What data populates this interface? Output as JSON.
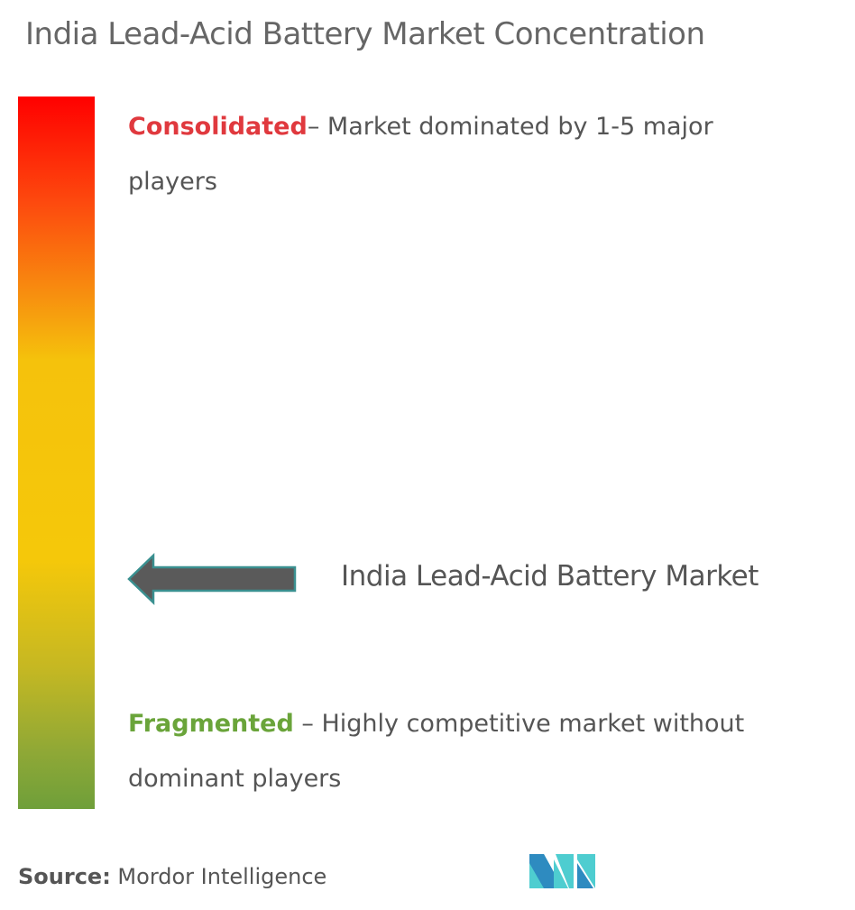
{
  "title": "India Lead-Acid Battery Market Concentration",
  "scale": {
    "top_color": "#ff0000",
    "middle_color": "#f5c80a",
    "bottom_color": "#6f9f3a"
  },
  "consolidated": {
    "label": "Consolidated",
    "text": "– Market dominated by 1-5 major players",
    "color": "#e0393e"
  },
  "fragmented": {
    "label": "Fragmented",
    "text": " – Highly competitive market without dominant players",
    "color": "#6aa43a"
  },
  "marker": {
    "label": "India Lead-Acid Battery Market",
    "icon": "left-arrow-icon",
    "fill": "#5a5a5a",
    "outline": "#3a9090"
  },
  "source": {
    "label": "Source:",
    "text": " Mordor Intelligence"
  },
  "logo": {
    "name": "mordor-intelligence-logo",
    "colors": [
      "#2e8bc0",
      "#4ecdd0"
    ]
  }
}
